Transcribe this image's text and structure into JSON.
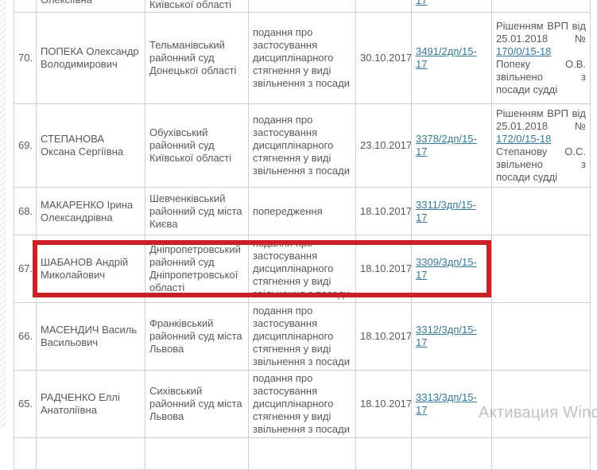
{
  "page": {
    "watermark_text": "Активация Wind",
    "link_color": "#36789c",
    "highlight_color": "#cb2026",
    "text_color": "#595959",
    "border_color": "#cfcfcf"
  },
  "table": {
    "partial_top": {
      "name_fragment": "Олексіївна",
      "court_fragment": "Київської області",
      "doc_fragment": "17"
    },
    "rows": [
      {
        "num": "70.",
        "name": "ПОПЕКА Олександр Володимирович",
        "court": "Тельманівський районний суд Донецької області",
        "action": "подання про застосування дисциплінарного стягнення у виді звільнення з посади",
        "date": "30.10.2017",
        "doc": "3491/2дп/15-17",
        "note_pre": "Рішенням ВРП від 25.01.2018 №",
        "note_link": "170/0/15-18",
        "note_post": "Попеку О.В. звільнено з посади судді"
      },
      {
        "num": "69.",
        "name": "СТЕПАНОВА Оксана Сергіївна",
        "court": "Обухівський районний суд Київської області",
        "action": "подання про застосування дисциплінарного стягнення у виді звільнення з посади",
        "date": "23.10.2017",
        "doc": "3378/2дп/15-17",
        "note_pre": "Рішенням ВРП від 25.01.2018 №",
        "note_link": "172/0/15-18",
        "note_post": "Степанову О.С. звільнено з посади судді"
      },
      {
        "num": "68.",
        "name": "МАКАРЕНКО Ірина Олександрівна",
        "court": "Шевченківський районний суд міста Києва",
        "action": "попередження",
        "date": "18.10.2017",
        "doc": "3311/3дп/15-17"
      },
      {
        "num": "67.",
        "name": "ШАБАНОВ Андрій Миколайович",
        "court": "Дніпропетровський районний суд Дніпропетровської області",
        "action": "подання про застосування дисциплінарного стягнення у виді звільнення з посади",
        "date": "18.10.2017",
        "doc": "3309/3дп/15-17",
        "highlighted": "true"
      },
      {
        "num": "66.",
        "name": "МАСЕНДИЧ Василь Васильович",
        "court": "Франківський районний суд міста Львова",
        "action": "подання про застосування дисциплінарного стягнення у виді звільнення з посади",
        "date": "18.10.2017",
        "doc": "3312/3дп/15-17"
      },
      {
        "num": "65.",
        "name": "РАДЧЕНКО Еллі Анатоліївна",
        "court": "Сихівський районний суд міста Львова",
        "action": "подання про застосування дисциплінарного стягнення у виді звільнення з посади",
        "date": "18.10.2017",
        "doc": "3313/3дп/15-17"
      }
    ]
  }
}
